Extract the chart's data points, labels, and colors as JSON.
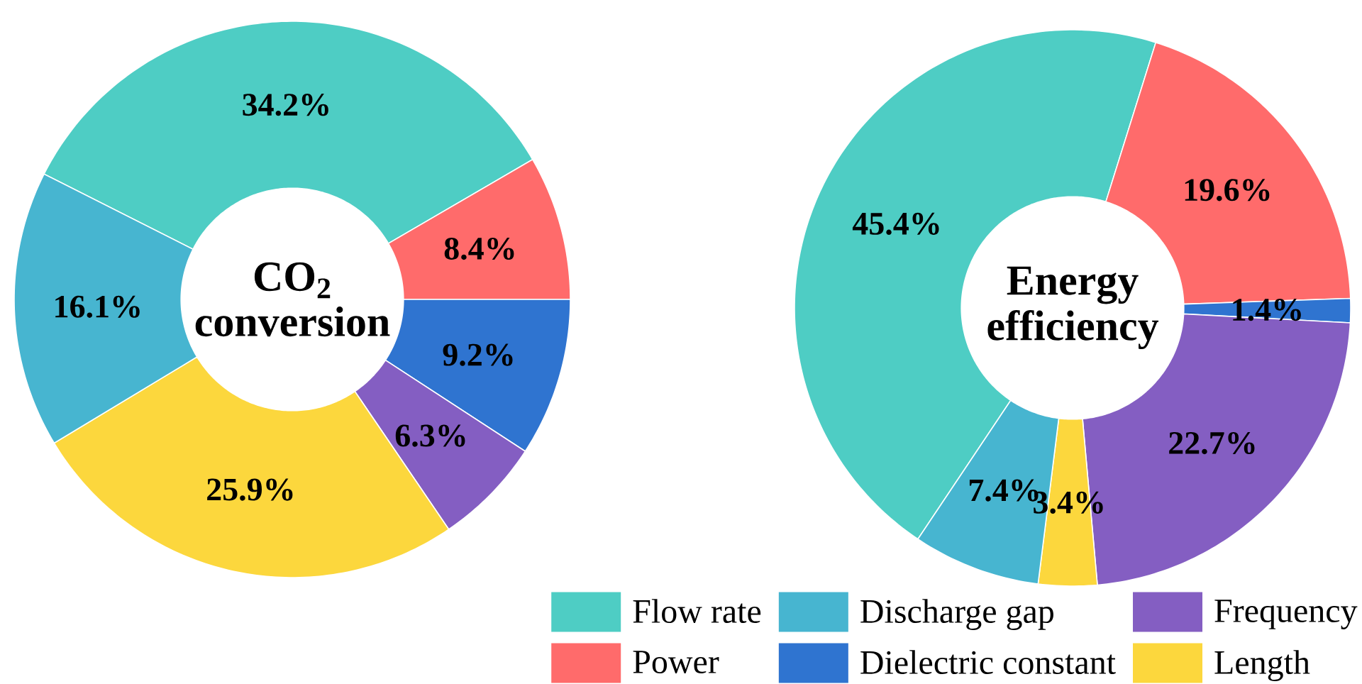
{
  "chart_data": [
    {
      "type": "donut",
      "title": "CO$_{2}$ conversion",
      "categories": [
        null,
        null,
        null,
        null,
        null,
        null
      ],
      "values": [
        34.2,
        8.4,
        9.2,
        6.3,
        25.9,
        16.1
      ],
      "value_labels": [
        "34.2%",
        "8.4%",
        "9.2%",
        "6.3%",
        "25.9%",
        "16.1%"
      ],
      "colors": [
        "#4ecdc4",
        "#ff6b6b",
        "#2f74d0",
        "#845ec2",
        "#fcd73d",
        "#47b5d0"
      ]
    },
    {
      "type": "donut",
      "title": "Energy efficiency",
      "categories": [
        "Flow rate",
        "Power",
        "Dielectric constant",
        "Frequency",
        "Length",
        "Discharge gap"
      ],
      "values": [
        45.4,
        19.6,
        1.4,
        22.7,
        3.4,
        7.4
      ],
      "value_labels": [
        "45.4%",
        "19.6%",
        "1.4%",
        "22.7%",
        "3.4%",
        "7.4%"
      ],
      "colors": [
        "#4ecdc4",
        "#ff6b6b",
        "#2f74d0",
        "#845ec2",
        "#fcd73d",
        "#47b5d0"
      ],
      "legend": "bottom"
    }
  ]
}
